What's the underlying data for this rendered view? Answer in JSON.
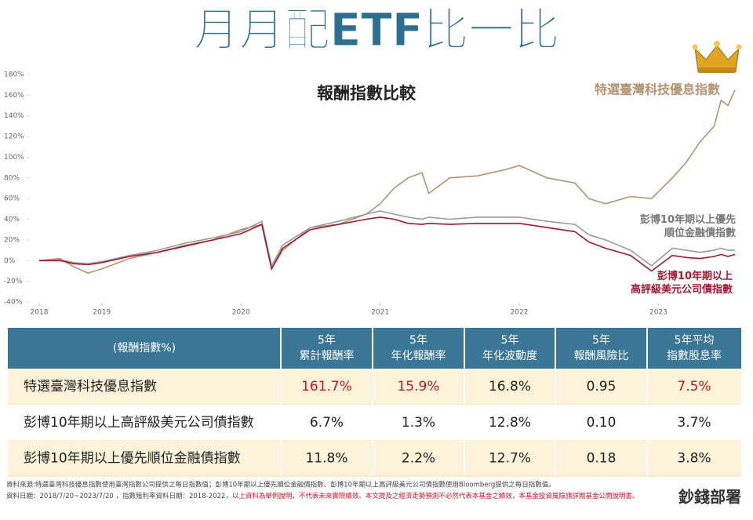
{
  "header": {
    "title": "月月配ETF比一比",
    "logo": "鈔錢部署"
  },
  "chart_data": {
    "type": "line",
    "title": "報酬指數比較",
    "x": [
      2018.55,
      2018.7,
      2018.8,
      2018.9,
      2019.0,
      2019.2,
      2019.4,
      2019.6,
      2019.8,
      2020.0,
      2020.15,
      2020.22,
      2020.3,
      2020.5,
      2020.7,
      2020.9,
      2021.0,
      2021.1,
      2021.2,
      2021.3,
      2021.35,
      2021.5,
      2021.7,
      2021.9,
      2022.0,
      2022.2,
      2022.4,
      2022.5,
      2022.62,
      2022.8,
      2022.95,
      2023.1,
      2023.2,
      2023.3,
      2023.4,
      2023.45,
      2023.5,
      2023.55
    ],
    "series": [
      {
        "name": "特選臺灣科技優息指數",
        "color": "#b39470",
        "values": [
          0,
          2,
          -6,
          -12,
          -8,
          2,
          8,
          15,
          20,
          30,
          35,
          -8,
          10,
          32,
          35,
          45,
          55,
          70,
          80,
          85,
          65,
          80,
          82,
          88,
          92,
          80,
          75,
          60,
          55,
          62,
          60,
          80,
          95,
          115,
          130,
          155,
          150,
          165
        ]
      },
      {
        "name": "彭博10年期以上優先順位金融債指數",
        "color": "#9b9b9b",
        "values": [
          0,
          1,
          -2,
          -3,
          -1,
          5,
          10,
          17,
          22,
          28,
          38,
          -5,
          15,
          32,
          38,
          45,
          48,
          45,
          42,
          40,
          42,
          40,
          42,
          42,
          42,
          38,
          35,
          25,
          20,
          10,
          -5,
          12,
          10,
          8,
          10,
          12,
          10,
          10
        ]
      },
      {
        "name": "彭博10年期以上高評級美元公司債指數",
        "color": "#a3182f",
        "values": [
          0,
          0,
          -3,
          -4,
          -2,
          4,
          8,
          14,
          20,
          26,
          35,
          -8,
          12,
          30,
          35,
          40,
          42,
          40,
          36,
          35,
          36,
          35,
          36,
          36,
          36,
          32,
          28,
          18,
          12,
          5,
          -10,
          5,
          3,
          2,
          4,
          6,
          4,
          6
        ]
      }
    ],
    "xlim": [
      2018.55,
      2023.55
    ],
    "xticks": [
      {
        "value": 2018.55,
        "label": "2018"
      },
      2019,
      2020,
      2021,
      2022,
      2023
    ],
    "ylim": [
      -40,
      180
    ],
    "yticks": [
      {
        "value": -40,
        "label": "-40%"
      },
      {
        "value": -20,
        "label": "-20%"
      },
      {
        "value": 0,
        "label": "0%"
      },
      {
        "value": 20,
        "label": "20%"
      },
      {
        "value": 40,
        "label": "40%"
      },
      {
        "value": 60,
        "label": "60%"
      },
      {
        "value": 80,
        "label": "80%"
      },
      {
        "value": 100,
        "label": "100%"
      },
      {
        "value": 120,
        "label": "120%"
      },
      {
        "value": 140,
        "label": "140%"
      },
      {
        "value": 160,
        "label": "160%"
      },
      {
        "value": 180,
        "label": "180%"
      }
    ],
    "grid": false
  },
  "table": {
    "header": [
      "(報酬指數%)",
      "5年\n累計報酬率",
      "5年\n年化報酬率",
      "5年\n年化波動度",
      "5年\n報酬風險比",
      "5年平均\n指數股息率"
    ],
    "rows": [
      [
        "特選臺灣科技優息指數",
        "161.7%",
        "15.9%",
        "16.8%",
        "0.95",
        "7.5%"
      ],
      [
        "彭博10年期以上高評級美元公司債指數",
        "6.7%",
        "1.3%",
        "12.8%",
        "0.10",
        "3.7%"
      ],
      [
        "彭博10年期以上優先順位金融債指數",
        "11.8%",
        "2.2%",
        "12.7%",
        "0.18",
        "3.8%"
      ]
    ]
  },
  "footer": {
    "source": "資料來源:特選臺灣科技優息指數使用臺灣指數公司提供之每日指數值；彭博10年期以上優先順位金融債指數、彭博10年期以上高評級美元公司債指數使用Bloomberg提供之每日指數值。",
    "dates": "資料日期：2018/7/20~2023/7/20 ，指數殖利率資料日期：2018-2022，",
    "disclaimer": "以上資料為舉例說明，不代表未來實際績效。本文提及之經濟走勢預測不必然代表本基金之績效，本基金投資風險請詳閱基金公開說明書。"
  }
}
